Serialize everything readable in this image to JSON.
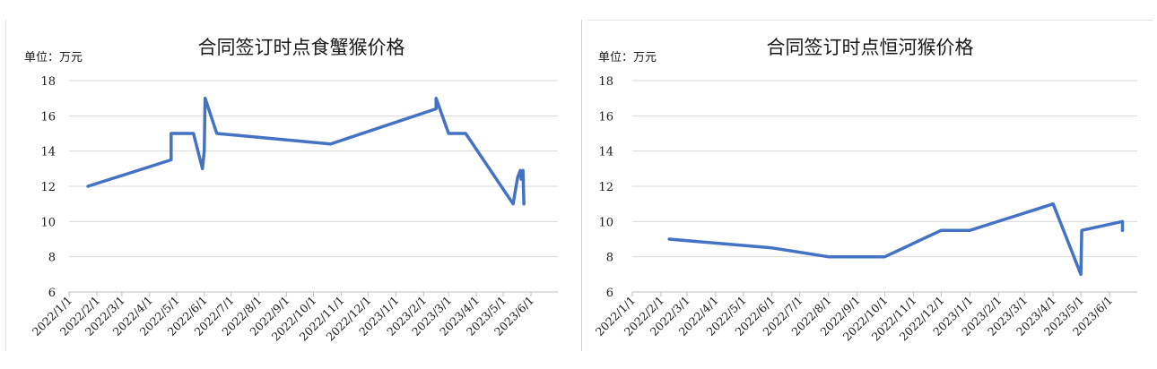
{
  "chart_data": [
    {
      "type": "line",
      "title": "合同签订时点食蟹猴价格",
      "unit_label": "单位：万元",
      "ylim": [
        6,
        18
      ],
      "yticks": [
        6,
        8,
        10,
        12,
        14,
        16,
        18
      ],
      "xlim": [
        "2022/1/1",
        "2023/7/1"
      ],
      "xticks": [
        "2022/1/1",
        "2022/2/1",
        "2022/3/1",
        "2022/4/1",
        "2022/5/1",
        "2022/6/1",
        "2022/7/1",
        "2022/8/1",
        "2022/9/1",
        "2022/10/1",
        "2022/11/1",
        "2022/12/1",
        "2023/1/1",
        "2023/2/1",
        "2023/3/1",
        "2023/4/1",
        "2023/5/1",
        "2023/6/1"
      ],
      "grid": true,
      "color": "#4472C4",
      "series": [
        {
          "points": [
            [
              "2022/1/22",
              12.0
            ],
            [
              "2022/4/25",
              13.5
            ],
            [
              "2022/4/25",
              15.0
            ],
            [
              "2022/5/20",
              15.0
            ],
            [
              "2022/5/30",
              13.0
            ],
            [
              "2022/6/1",
              14.0
            ],
            [
              "2022/6/2",
              17.0
            ],
            [
              "2022/6/15",
              15.0
            ],
            [
              "2022/10/20",
              14.4
            ],
            [
              "2023/2/15",
              16.4
            ],
            [
              "2023/2/15",
              17.0
            ],
            [
              "2023/3/1",
              15.0
            ],
            [
              "2023/3/20",
              15.0
            ],
            [
              "2023/5/12",
              11.0
            ],
            [
              "2023/5/17",
              12.5
            ],
            [
              "2023/5/20",
              12.9
            ],
            [
              "2023/5/21",
              12.4
            ],
            [
              "2023/5/23",
              12.9
            ],
            [
              "2023/5/24",
              11.0
            ]
          ]
        }
      ]
    },
    {
      "type": "line",
      "title": "合同签订时点恒河猴价格",
      "unit_label": "单位：万元",
      "ylim": [
        6,
        18
      ],
      "yticks": [
        6,
        8,
        10,
        12,
        14,
        16,
        18
      ],
      "xlim": [
        "2022/1/1",
        "2023/7/1"
      ],
      "xticks": [
        "2022/1/1",
        "2022/2/1",
        "2022/3/1",
        "2022/4/1",
        "2022/5/1",
        "2022/6/1",
        "2022/7/1",
        "2022/8/1",
        "2022/9/1",
        "2022/10/1",
        "2022/11/1",
        "2022/12/1",
        "2023/1/1",
        "2023/2/1",
        "2023/3/1",
        "2023/4/1",
        "2023/5/1",
        "2023/6/1"
      ],
      "grid": true,
      "color": "#4472C4",
      "series": [
        {
          "points": [
            [
              "2022/2/10",
              9.0
            ],
            [
              "2022/6/1",
              8.5
            ],
            [
              "2022/8/1",
              8.0
            ],
            [
              "2022/10/1",
              8.0
            ],
            [
              "2022/12/1",
              9.5
            ],
            [
              "2023/1/1",
              9.5
            ],
            [
              "2023/4/1",
              11.0
            ],
            [
              "2023/5/1",
              7.0
            ],
            [
              "2023/5/2",
              9.5
            ],
            [
              "2023/6/15",
              10.0
            ],
            [
              "2023/6/15",
              9.5
            ]
          ]
        }
      ]
    }
  ]
}
